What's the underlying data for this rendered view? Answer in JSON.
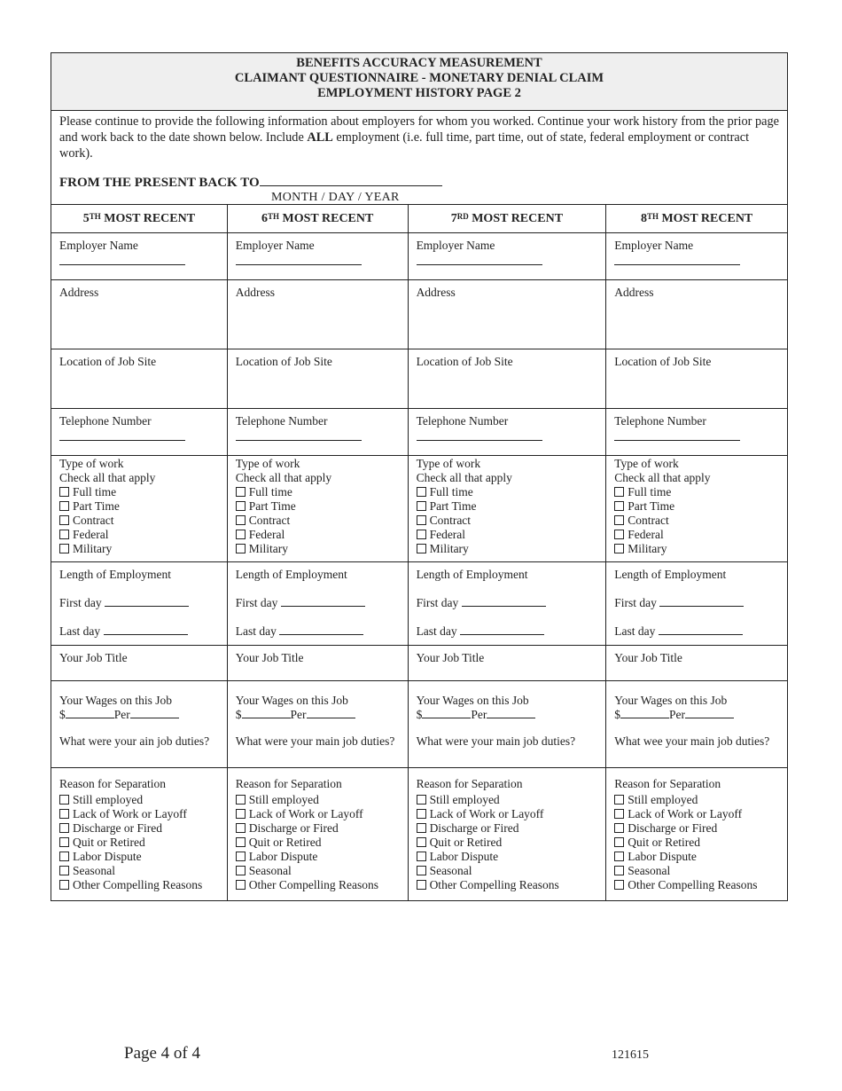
{
  "header": {
    "line1": "BENEFITS ACCURACY MEASUREMENT",
    "line2": "CLAIMANT QUESTIONNAIRE  -  MONETARY DENIAL CLAIM",
    "line3": "EMPLOYMENT HISTORY PAGE 2"
  },
  "intro": {
    "before": "Please continue to provide the following information about employers for whom you worked. Continue your work history from the prior page and work back to the date shown below. Include ",
    "bold": "ALL",
    "after": " employment (i.e. full time, part time, out of state, federal employment or contract work)."
  },
  "from_label": "FROM THE PRESENT BACK TO",
  "date_format": "MONTH  /  DAY  /  YEAR",
  "columns": [
    {
      "num": "5",
      "sup": "TH",
      "heading": " MOST RECENT",
      "duties": "What were your ain job duties?"
    },
    {
      "num": "6",
      "sup": "TH",
      "heading": " MOST RECENT",
      "duties": "What were your main job duties?"
    },
    {
      "num": "7",
      "sup": "RD",
      "heading": " MOST RECENT",
      "duties": "What were your main job duties?"
    },
    {
      "num": "8",
      "sup": "TH",
      "heading": " MOST RECENT",
      "duties": "What wee your main job duties?"
    }
  ],
  "labels": {
    "employer": "Employer Name",
    "address": "Address",
    "location": "Location of Job Site",
    "phone": "Telephone Number",
    "type": "Type of work",
    "check": "Check all that apply",
    "length": "Length of Employment",
    "first": "First day",
    "last": "Last day",
    "title": "Your Job Title",
    "wages": "Your Wages on this Job",
    "dollar": "$",
    "per": "Per",
    "reason": "Reason for Separation"
  },
  "work_types": [
    "Full time",
    "Part Time",
    "Contract",
    "Federal",
    "Military"
  ],
  "reasons": [
    "Still employed",
    "Lack of Work or Layoff",
    "Discharge or Fired",
    "Quit or Retired",
    "Labor Dispute",
    "Seasonal",
    "Other Compelling Reasons"
  ],
  "footer": {
    "page": "Page 4 of 4",
    "code": "121615"
  }
}
